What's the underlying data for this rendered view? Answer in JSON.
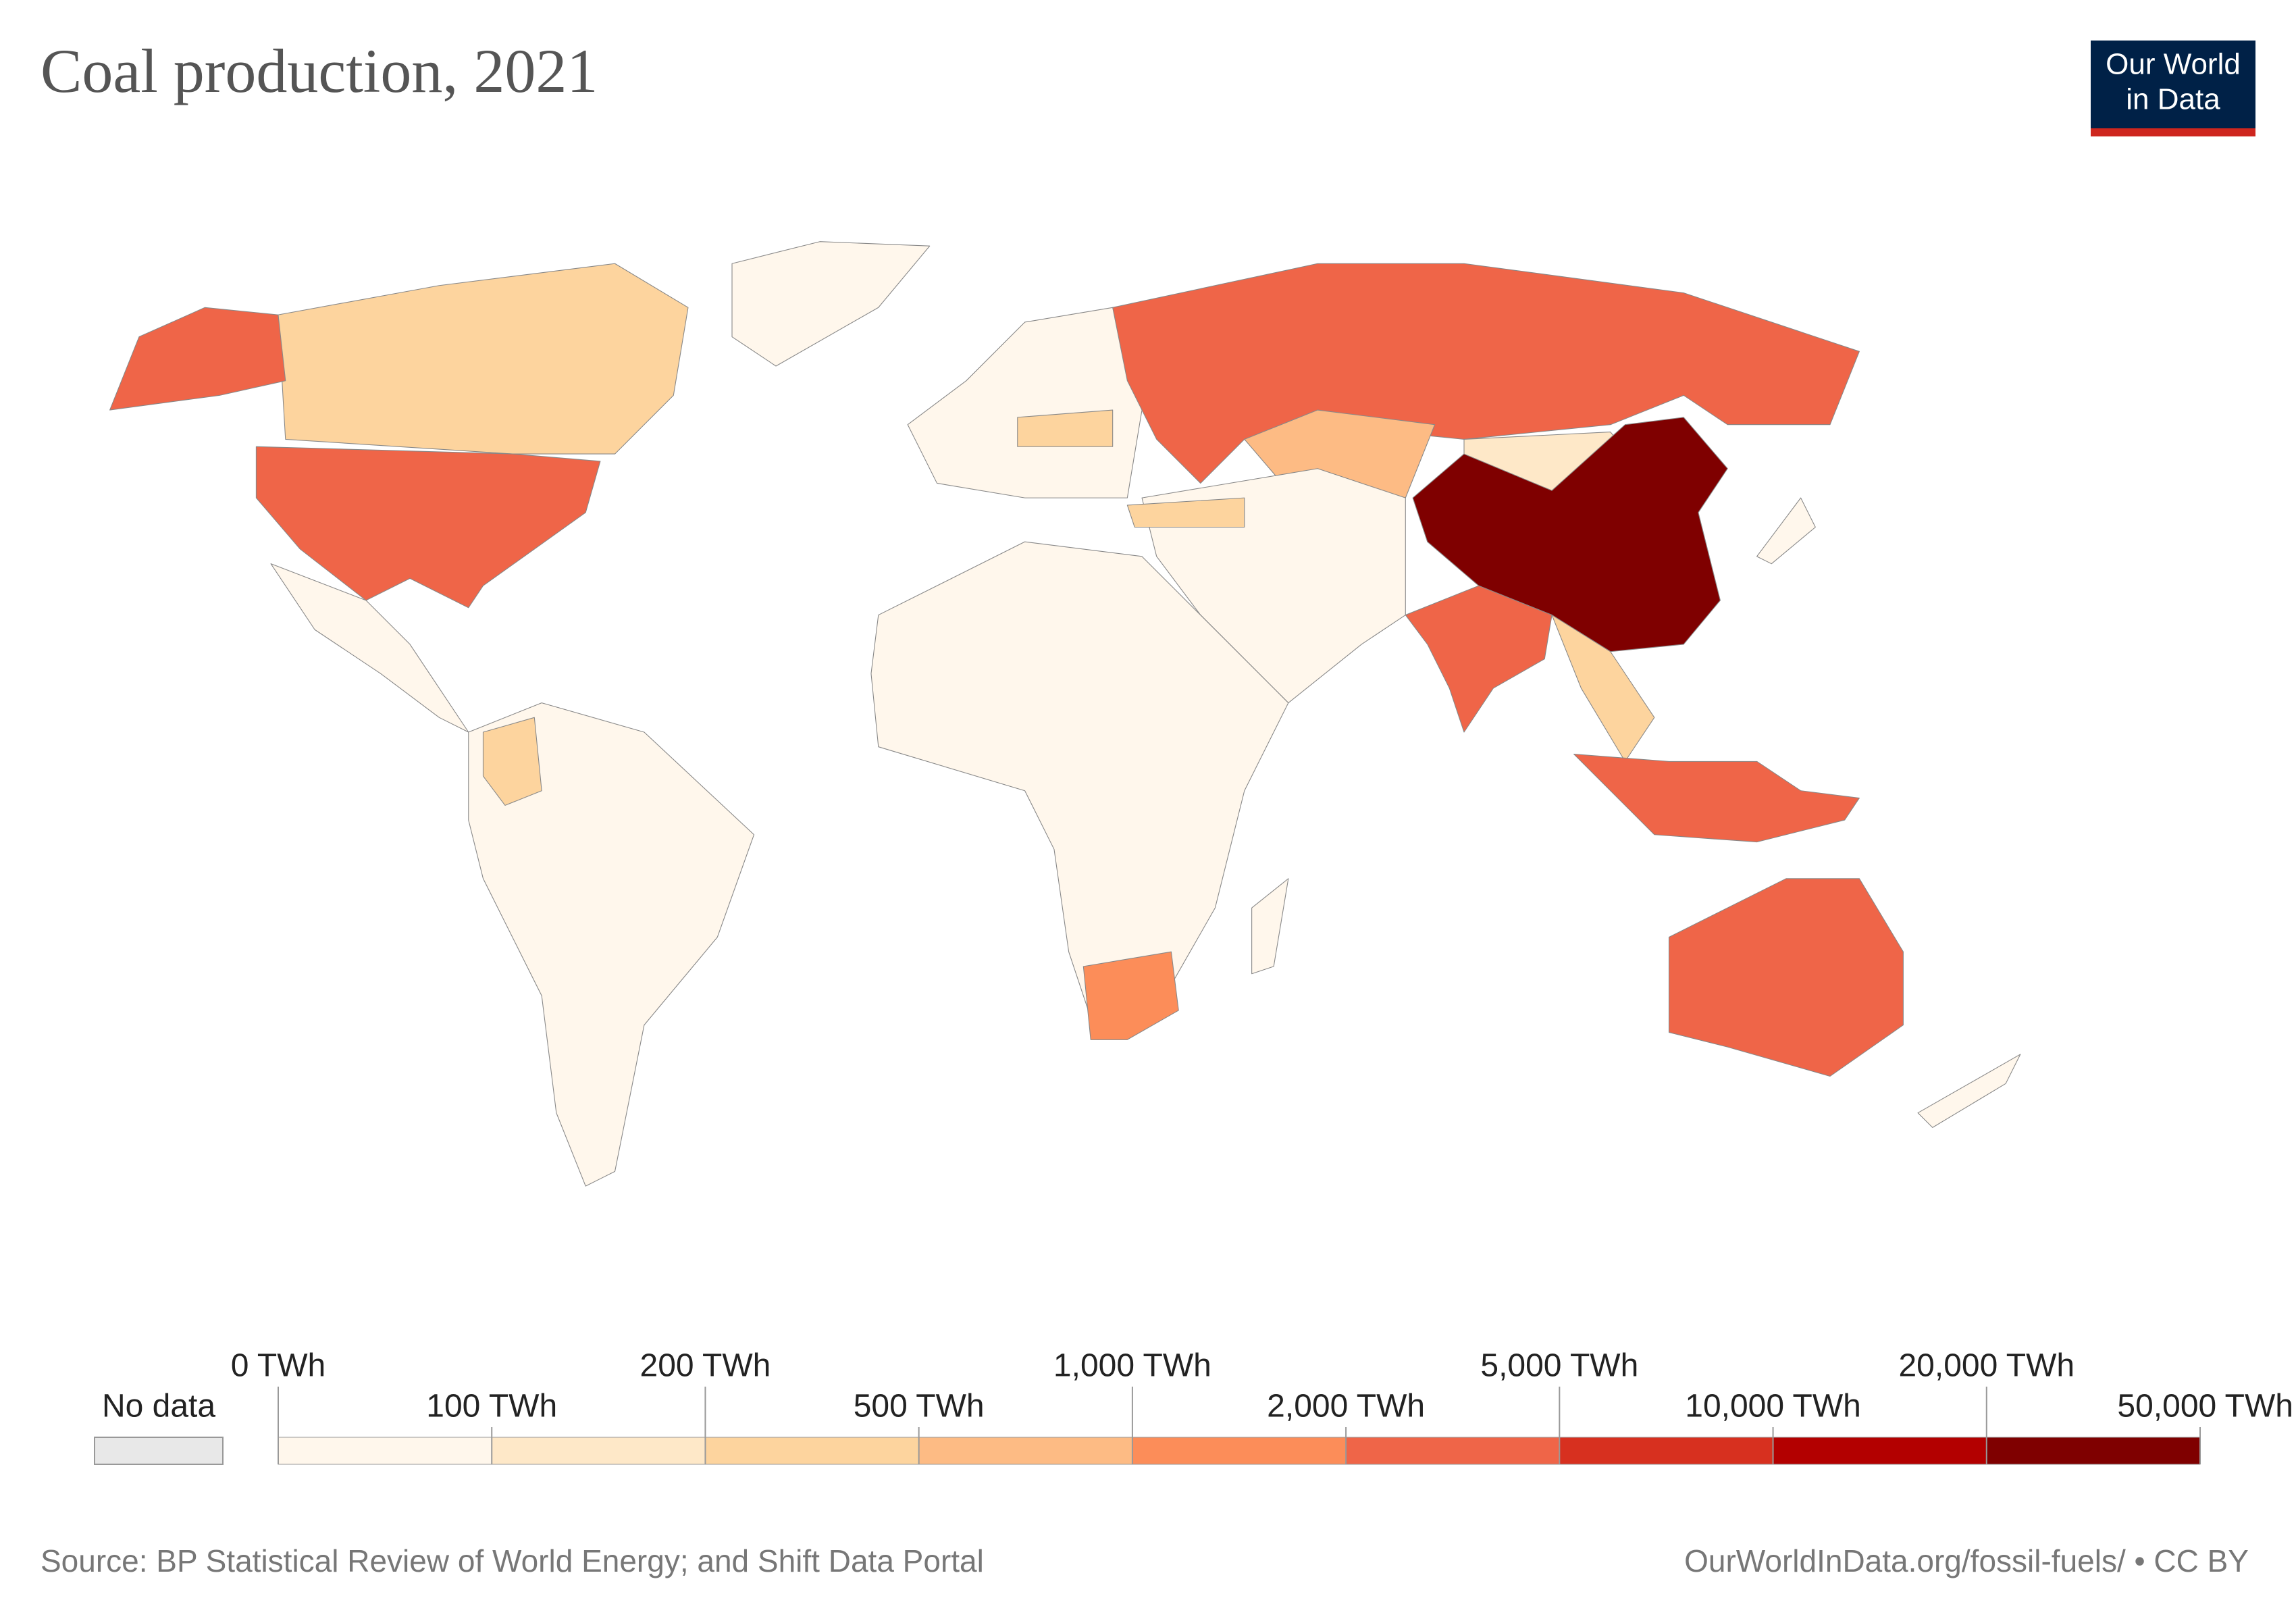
{
  "chart_data": {
    "type": "choropleth",
    "title": "Coal production, 2021",
    "logo": [
      "Our World",
      "in Data"
    ],
    "legend": {
      "no_data_label": "No data",
      "no_data_color": "#e8e8e8",
      "ticks": [
        {
          "value": 0,
          "label": "0 TWh"
        },
        {
          "value": 100,
          "label": "100 TWh"
        },
        {
          "value": 200,
          "label": "200 TWh"
        },
        {
          "value": 500,
          "label": "500 TWh"
        },
        {
          "value": 1000,
          "label": "1,000 TWh"
        },
        {
          "value": 2000,
          "label": "2,000 TWh"
        },
        {
          "value": 5000,
          "label": "5,000 TWh"
        },
        {
          "value": 10000,
          "label": "10,000 TWh"
        },
        {
          "value": 20000,
          "label": "20,000 TWh"
        },
        {
          "value": 50000,
          "label": "50,000 TWh"
        }
      ],
      "colors": [
        "#fff7ec",
        "#fee8c8",
        "#fdd49e",
        "#fdbb84",
        "#fc8d59",
        "#ef6548",
        "#d7301f",
        "#b30000",
        "#7f0000"
      ]
    },
    "source": "Source: BP Statistical Review of World Energy; and Shift Data Portal",
    "url": "OurWorldInData.org/fossil-fuels/ • CC BY"
  }
}
